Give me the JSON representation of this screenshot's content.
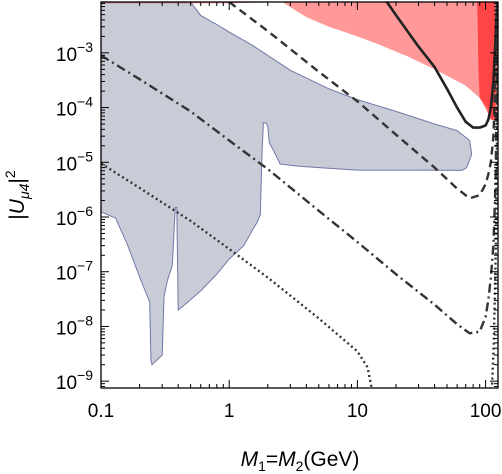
{
  "chart_data": {
    "type": "line",
    "xlabel": "M₁=M₂(GeV)",
    "xlabel_parts": {
      "m": "M",
      "sub1": "1",
      "eq": "=",
      "sub2": "2",
      "unit": "(GeV)"
    },
    "ylabel": "|Uμ4|²",
    "ylabel_parts": {
      "bar": "|",
      "u": "U",
      "sub": "μ4",
      "sup": "2"
    },
    "x_scale": "log",
    "y_scale": "log",
    "xlim": [
      0.1,
      125
    ],
    "ylim": [
      7.5e-10,
      0.0085
    ],
    "x_ticks": [
      {
        "value": 0.1,
        "label": "0.1"
      },
      {
        "value": 1,
        "label": "1"
      },
      {
        "value": 10,
        "label": "10"
      },
      {
        "value": 100,
        "label": "100"
      }
    ],
    "y_ticks": [
      {
        "value": 0.001,
        "base": "10",
        "exp": "−3"
      },
      {
        "value": 0.0001,
        "base": "10",
        "exp": "−4"
      },
      {
        "value": 1e-05,
        "base": "10",
        "exp": "−5"
      },
      {
        "value": 1e-06,
        "base": "10",
        "exp": "−6"
      },
      {
        "value": 1e-07,
        "base": "10",
        "exp": "−7"
      },
      {
        "value": 1e-08,
        "base": "10",
        "exp": "−8"
      },
      {
        "value": 1e-09,
        "base": "10",
        "exp": "−9"
      }
    ],
    "grid": false,
    "regions": [
      {
        "fill": "#c8ccd6",
        "stroke": "#7377a8",
        "points": [
          [
            0.1,
            0.0085
          ],
          [
            0.5,
            0.0085
          ],
          [
            0.6,
            0.0048
          ],
          [
            0.8,
            0.0033
          ],
          [
            1.0,
            0.0024
          ],
          [
            1.5,
            0.0014
          ],
          [
            2,
            0.0009
          ],
          [
            3,
            0.00048
          ],
          [
            6,
            0.00022
          ],
          [
            10,
            0.00014
          ],
          [
            20,
            8.5e-05
          ],
          [
            40,
            5e-05
          ],
          [
            60,
            3.8e-05
          ],
          [
            75,
            2.5e-05
          ],
          [
            78,
            1.4e-05
          ],
          [
            71,
            7.9e-06
          ],
          [
            65,
            7.1e-06
          ],
          [
            30,
            7.2e-06
          ],
          [
            10,
            7.2e-06
          ],
          [
            5,
            8e-06
          ],
          [
            3.5,
            8.5e-06
          ],
          [
            2.5,
            9.3e-06
          ],
          [
            2.2,
            1.7e-05
          ],
          [
            2.05,
            2.3e-05
          ],
          [
            2.0,
            4.5e-05
          ],
          [
            1.95,
            5.2e-05
          ],
          [
            1.85,
            5.3e-05
          ],
          [
            1.8,
            1.3e-05
          ],
          [
            1.75,
            1.1e-06
          ],
          [
            1.65,
            8e-07
          ],
          [
            1.5,
            5.5e-07
          ],
          [
            1.3,
            3e-07
          ],
          [
            1.0,
            1.7e-07
          ],
          [
            0.8,
            9e-08
          ],
          [
            0.6,
            4.5e-08
          ],
          [
            0.45,
            2.5e-08
          ],
          [
            0.4,
            2e-08
          ],
          [
            0.39,
            1.5e-06
          ],
          [
            0.38,
            1.5e-06
          ],
          [
            0.36,
            1.3e-07
          ],
          [
            0.33,
            7e-08
          ],
          [
            0.31,
            3.5e-08
          ],
          [
            0.3,
            3e-09
          ],
          [
            0.25,
            2e-09
          ],
          [
            0.245,
            2.5e-09
          ],
          [
            0.24,
            2.8e-08
          ],
          [
            0.2,
            8e-08
          ],
          [
            0.16,
            3.2e-07
          ],
          [
            0.13,
            9.5e-07
          ],
          [
            0.1,
            1.25e-06
          ]
        ]
      },
      {
        "fill": "#ff0000",
        "opacity": 0.4,
        "stroke": "none",
        "points": [
          [
            0.1,
            0.008
          ],
          [
            1,
            0.008
          ],
          [
            2.6,
            0.0085
          ],
          [
            125,
            0.0085
          ],
          [
            125,
            6e-05
          ],
          [
            110,
            6e-05
          ],
          [
            105,
            9.5e-05
          ],
          [
            90,
            0.00015
          ],
          [
            70,
            0.00025
          ],
          [
            40,
            0.0005
          ],
          [
            25,
            0.00085
          ],
          [
            15,
            0.0014
          ],
          [
            10,
            0.002
          ],
          [
            6,
            0.003
          ],
          [
            4,
            0.0045
          ],
          [
            3,
            0.0068
          ],
          [
            2.6,
            0.0085
          ],
          [
            0.1,
            0.0085
          ]
        ]
      },
      {
        "fill": "#ff0000",
        "opacity": 0.55,
        "stroke": "none",
        "points": [
          [
            86,
            0.0085
          ],
          [
            118,
            0.0085
          ],
          [
            120,
            6e-05
          ],
          [
            110,
            6e-05
          ],
          [
            100,
            9.7e-05
          ],
          [
            90,
            0.00015
          ],
          [
            88,
            0.00045
          ],
          [
            87,
            0.0025
          ],
          [
            86,
            0.0085
          ]
        ]
      }
    ],
    "series": [
      {
        "dash": "none",
        "width": 2.6,
        "color": "#222222",
        "x": [
          17,
          20,
          30,
          40,
          50,
          60,
          70,
          80,
          90,
          100,
          105,
          110,
          115,
          120,
          123
        ],
        "y": [
          0.0085,
          0.0049,
          0.0013,
          0.00055,
          0.00022,
          0.0001,
          5.5e-05,
          4.3e-05,
          4.3e-05,
          4.7e-05,
          6e-05,
          0.0001,
          0.0003,
          0.002,
          0.0085
        ]
      },
      {
        "dash": "8,5",
        "width": 2.4,
        "color": "#333333",
        "x": [
          1,
          2,
          5,
          10,
          20,
          40,
          60,
          75,
          90,
          100,
          105,
          110,
          115,
          120,
          124
        ],
        "y": [
          0.0085,
          0.0025,
          0.00045,
          0.00013,
          3.2e-05,
          8e-06,
          3.3e-06,
          2.2e-06,
          2.5e-06,
          4e-06,
          6e-06,
          1e-05,
          3e-05,
          0.0005,
          0.0085
        ]
      },
      {
        "dash": "9,4,2,4",
        "width": 2.4,
        "color": "#333333",
        "x": [
          0.1,
          0.2,
          0.5,
          1,
          2,
          5,
          10,
          20,
          40,
          60,
          75,
          90,
          100,
          105,
          110,
          115,
          120,
          124
        ],
        "y": [
          0.0009,
          0.00033,
          8.5e-05,
          2.5e-05,
          7.5e-06,
          1.3e-06,
          3.5e-07,
          9e-08,
          2.5e-08,
          1.1e-08,
          7.5e-09,
          8e-09,
          1.5e-08,
          3e-08,
          8e-08,
          3e-07,
          5e-06,
          0.0085
        ]
      },
      {
        "dash": "2,3",
        "width": 2.4,
        "color": "#333333",
        "x": [
          0.1,
          0.2,
          0.5,
          1,
          2,
          5,
          10,
          12,
          13
        ],
        "y": [
          9.5e-06,
          3.4e-06,
          8.5e-07,
          2.6e-07,
          7.8e-08,
          1.4e-08,
          3.5e-09,
          1.8e-09,
          7e-10
        ]
      },
      {
        "dash": "2,3",
        "width": 2.4,
        "color": "#333333",
        "x": [
          112,
          116,
          120,
          123,
          124.5
        ],
        "y": [
          7e-10,
          5e-09,
          2e-07,
          3e-05,
          0.0085
        ]
      }
    ]
  }
}
